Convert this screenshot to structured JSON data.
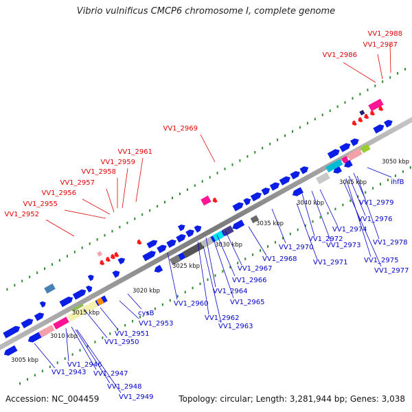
{
  "title": "Vibrio vulnificus CMCP6 chromosome I, complete genome",
  "footer": {
    "accession": "Accession: NC_004459",
    "summary": "Topology: circular; Length: 3,281,944 bp; Genes: 3,038"
  },
  "ticks": [
    "3005 kbp",
    "3010 kbp",
    "3015 kbp",
    "3020 kbp",
    "3025 kbp",
    "3030 kbp",
    "3035 kbp",
    "3040 kbp",
    "3045 kbp",
    "3050 kbp"
  ],
  "red_labels": [
    "VV1_2988",
    "VV1_2987",
    "VV1_2986",
    "VV1_2969",
    "VV1_2961",
    "VV1_2959",
    "VV1_2958",
    "VV1_2957",
    "VV1_2956",
    "VV1_2955",
    "VV1_2952"
  ],
  "blue_labels": [
    "ihfB",
    "VV1_2979",
    "VV1_2976",
    "VV1_2978",
    "VV1_2975",
    "VV1_2977",
    "VV1_2974",
    "VV1_2972",
    "VV1_2973",
    "VV1_2971",
    "VV1_2970",
    "VV1_2968",
    "VV1_2967",
    "VV1_2966",
    "VV1_2964",
    "VV1_2965",
    "VV1_2962",
    "VV1_2963",
    "VV1_2960",
    "cysB",
    "VV1_2953",
    "VV1_2951",
    "VV1_2950",
    "VV1_2946",
    "VV1_2947",
    "VV1_2943",
    "VV1_2948",
    "VV1_2949"
  ],
  "colors": {
    "forward_cds": "#0a1ee6",
    "reverse_cds": "#ff1a1a",
    "backbone": "#8a8a8a",
    "dots": "#2d8a2d",
    "red_label": "#e00000",
    "blue_label": "#0000cc"
  }
}
